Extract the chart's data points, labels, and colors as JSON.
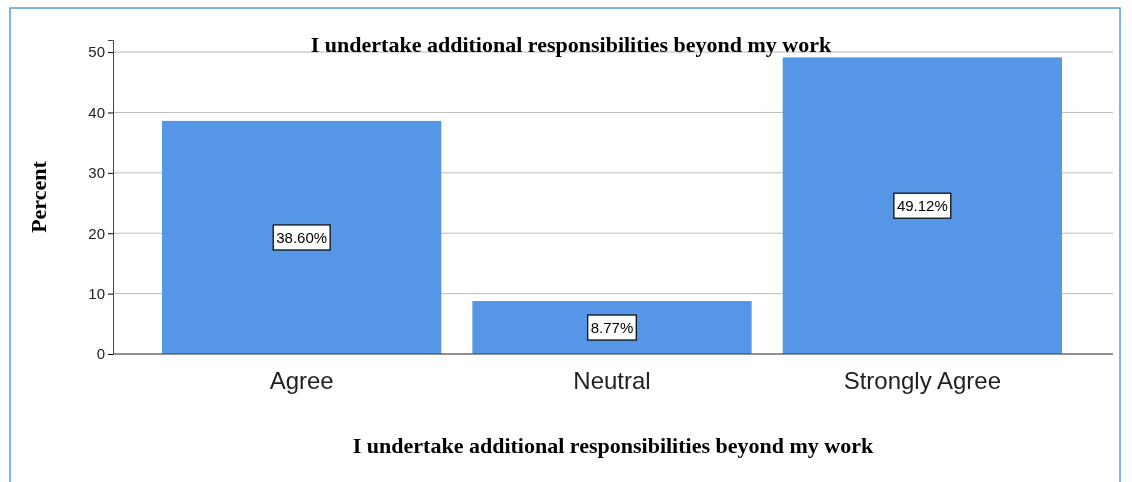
{
  "chart_data": {
    "type": "bar",
    "title": "I undertake additional responsibilities beyond my work",
    "xlabel": "I undertake additional responsibilities beyond my work",
    "ylabel": "Percent",
    "categories": [
      "Agree",
      "Neutral",
      "Strongly Agree"
    ],
    "values": [
      38.6,
      8.77,
      49.12
    ],
    "value_labels": [
      "38.60%",
      "8.77%",
      "49.12%"
    ],
    "color": "#5596e6",
    "ylim": [
      0,
      52
    ],
    "yticks": [
      0,
      10,
      20,
      30,
      40,
      50
    ],
    "grid": "y"
  }
}
